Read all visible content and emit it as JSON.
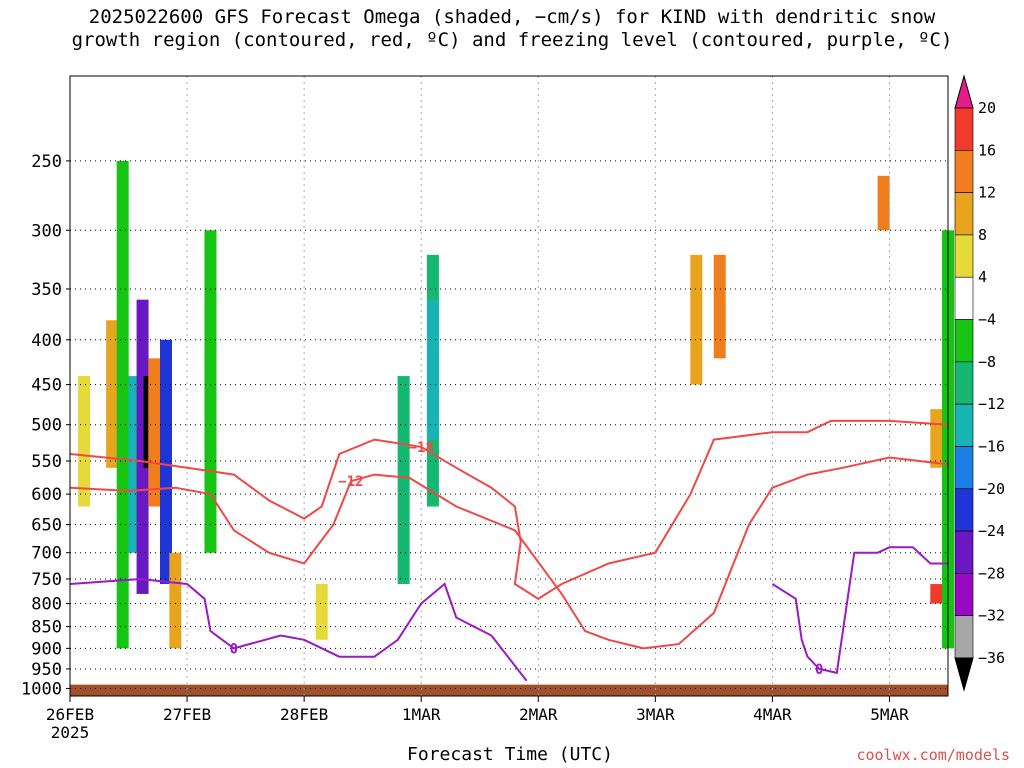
{
  "title_line1": "2025022600 GFS Forecast Omega (shaded, −cm/s) for KIND with dendritic snow",
  "title_line2": "growth region (contoured, red, ºC) and freezing level (contoured, purple, ºC)",
  "credit": "coolwx.com/models",
  "chart_data": {
    "type": "heatmap",
    "xlabel": "Forecast Time (UTC)",
    "x_ticks": [
      {
        "label": "26FEB",
        "sublabel": "2025",
        "day": 0
      },
      {
        "label": "27FEB",
        "day": 1
      },
      {
        "label": "28FEB",
        "day": 2
      },
      {
        "label": "1MAR",
        "day": 3
      },
      {
        "label": "2MAR",
        "day": 4
      },
      {
        "label": "3MAR",
        "day": 5
      },
      {
        "label": "4MAR",
        "day": 6
      },
      {
        "label": "5MAR",
        "day": 7
      }
    ],
    "x_range_days": [
      0,
      7.5
    ],
    "y_ticks_hpa": [
      250,
      300,
      350,
      400,
      450,
      500,
      550,
      600,
      650,
      700,
      750,
      800,
      850,
      900,
      950,
      1000
    ],
    "y_range_hpa": [
      200,
      1020
    ],
    "colorbar": {
      "labels": [
        "20",
        "16",
        "12",
        "8",
        "4",
        "−4",
        "−8",
        "−12",
        "−16",
        "−20",
        "−24",
        "−28",
        "−32",
        "−36"
      ],
      "bins": [
        {
          "lo": 20,
          "hi": null,
          "color": "#e61b8e"
        },
        {
          "lo": 16,
          "hi": 20,
          "color": "#ef3b2c"
        },
        {
          "lo": 12,
          "hi": 16,
          "color": "#f07e1e"
        },
        {
          "lo": 8,
          "hi": 12,
          "color": "#e8a41f"
        },
        {
          "lo": 4,
          "hi": 8,
          "color": "#e6d93a"
        },
        {
          "lo": -4,
          "hi": 4,
          "color": "#ffffff"
        },
        {
          "lo": -8,
          "hi": -4,
          "color": "#16c414"
        },
        {
          "lo": -12,
          "hi": -8,
          "color": "#15b870"
        },
        {
          "lo": -16,
          "hi": -12,
          "color": "#18b3b3"
        },
        {
          "lo": -20,
          "hi": -16,
          "color": "#1c7fe6"
        },
        {
          "lo": -24,
          "hi": -20,
          "color": "#2035d6"
        },
        {
          "lo": -28,
          "hi": -24,
          "color": "#6a18c4"
        },
        {
          "lo": -32,
          "hi": -28,
          "color": "#9a08c4"
        },
        {
          "lo": -36,
          "hi": -32,
          "color": "#a7a7a7"
        },
        {
          "lo": null,
          "hi": -36,
          "color": "#000000"
        }
      ]
    },
    "omega_cells": [
      {
        "t": 0.12,
        "p0": 440,
        "p1": 620,
        "v": 6
      },
      {
        "t": 0.36,
        "p0": 380,
        "p1": 560,
        "v": 10
      },
      {
        "t": 0.45,
        "p0": 250,
        "p1": 900,
        "v": -8
      },
      {
        "t": 0.55,
        "p0": 440,
        "p1": 700,
        "v": -16
      },
      {
        "t": 0.62,
        "p0": 360,
        "p1": 780,
        "v": -28
      },
      {
        "t": 0.68,
        "p0": 440,
        "p1": 560,
        "v": -40
      },
      {
        "t": 0.72,
        "p0": 420,
        "p1": 620,
        "v": 12
      },
      {
        "t": 0.82,
        "p0": 400,
        "p1": 760,
        "v": -24
      },
      {
        "t": 0.9,
        "p0": 700,
        "p1": 900,
        "v": 8
      },
      {
        "t": 1.2,
        "p0": 300,
        "p1": 700,
        "v": -6
      },
      {
        "t": 2.15,
        "p0": 760,
        "p1": 880,
        "v": 6
      },
      {
        "t": 2.85,
        "p0": 440,
        "p1": 760,
        "v": -10
      },
      {
        "t": 3.1,
        "p0": 320,
        "p1": 620,
        "v": -12
      },
      {
        "t": 3.1,
        "p0": 360,
        "p1": 520,
        "v": -16
      },
      {
        "t": 5.35,
        "p0": 320,
        "p1": 450,
        "v": 10
      },
      {
        "t": 5.55,
        "p0": 320,
        "p1": 420,
        "v": 12
      },
      {
        "t": 6.95,
        "p0": 260,
        "p1": 300,
        "v": 14
      },
      {
        "t": 7.4,
        "p0": 480,
        "p1": 560,
        "v": 10
      },
      {
        "t": 7.4,
        "p0": 760,
        "p1": 800,
        "v": 18
      },
      {
        "t": 7.5,
        "p0": 300,
        "p1": 900,
        "v": -8
      }
    ],
    "dgz_contours": [
      {
        "label": "−18",
        "points": [
          [
            0.0,
            540
          ],
          [
            0.6,
            550
          ],
          [
            1.0,
            560
          ],
          [
            1.4,
            570
          ],
          [
            1.7,
            610
          ],
          [
            2.0,
            640
          ],
          [
            2.15,
            620
          ],
          [
            2.3,
            540
          ],
          [
            2.6,
            520
          ],
          [
            3.0,
            530
          ],
          [
            3.3,
            560
          ],
          [
            3.6,
            590
          ],
          [
            3.8,
            620
          ],
          [
            3.85,
            680
          ],
          [
            3.8,
            760
          ],
          [
            4.0,
            790
          ],
          [
            4.2,
            760
          ],
          [
            4.6,
            720
          ],
          [
            5.0,
            700
          ],
          [
            5.3,
            600
          ],
          [
            5.5,
            520
          ],
          [
            6.0,
            510
          ],
          [
            6.3,
            510
          ],
          [
            6.5,
            495
          ],
          [
            7.0,
            495
          ],
          [
            7.5,
            500
          ]
        ]
      },
      {
        "label": "−12",
        "points": [
          [
            0.0,
            590
          ],
          [
            0.5,
            595
          ],
          [
            0.9,
            590
          ],
          [
            1.2,
            600
          ],
          [
            1.4,
            660
          ],
          [
            1.7,
            700
          ],
          [
            2.0,
            720
          ],
          [
            2.25,
            650
          ],
          [
            2.4,
            580
          ],
          [
            2.6,
            570
          ],
          [
            2.9,
            575
          ],
          [
            3.3,
            620
          ],
          [
            3.8,
            660
          ],
          [
            4.2,
            780
          ],
          [
            4.4,
            860
          ],
          [
            4.6,
            880
          ],
          [
            4.9,
            900
          ],
          [
            5.2,
            890
          ],
          [
            5.5,
            820
          ],
          [
            5.8,
            650
          ],
          [
            6.0,
            590
          ],
          [
            6.3,
            570
          ],
          [
            6.6,
            560
          ],
          [
            7.0,
            545
          ],
          [
            7.5,
            555
          ]
        ]
      }
    ],
    "freezing_contours": [
      {
        "label": "0",
        "points": [
          [
            0.0,
            760
          ],
          [
            0.6,
            750
          ],
          [
            1.0,
            760
          ],
          [
            1.15,
            790
          ],
          [
            1.2,
            860
          ],
          [
            1.4,
            900
          ],
          [
            1.8,
            870
          ],
          [
            2.0,
            880
          ],
          [
            2.3,
            920
          ],
          [
            2.6,
            920
          ],
          [
            2.8,
            880
          ],
          [
            3.0,
            800
          ],
          [
            3.2,
            760
          ],
          [
            3.3,
            830
          ],
          [
            3.6,
            870
          ],
          [
            3.9,
            980
          ]
        ]
      },
      {
        "label": "0",
        "points": [
          [
            6.0,
            760
          ],
          [
            6.2,
            790
          ],
          [
            6.25,
            880
          ],
          [
            6.3,
            920
          ],
          [
            6.4,
            950
          ],
          [
            6.55,
            960
          ],
          [
            6.7,
            700
          ],
          [
            6.9,
            700
          ],
          [
            7.0,
            690
          ],
          [
            7.2,
            690
          ],
          [
            7.35,
            720
          ],
          [
            7.5,
            720
          ]
        ]
      }
    ],
    "ground_color": "#a0502a",
    "grid": true
  }
}
